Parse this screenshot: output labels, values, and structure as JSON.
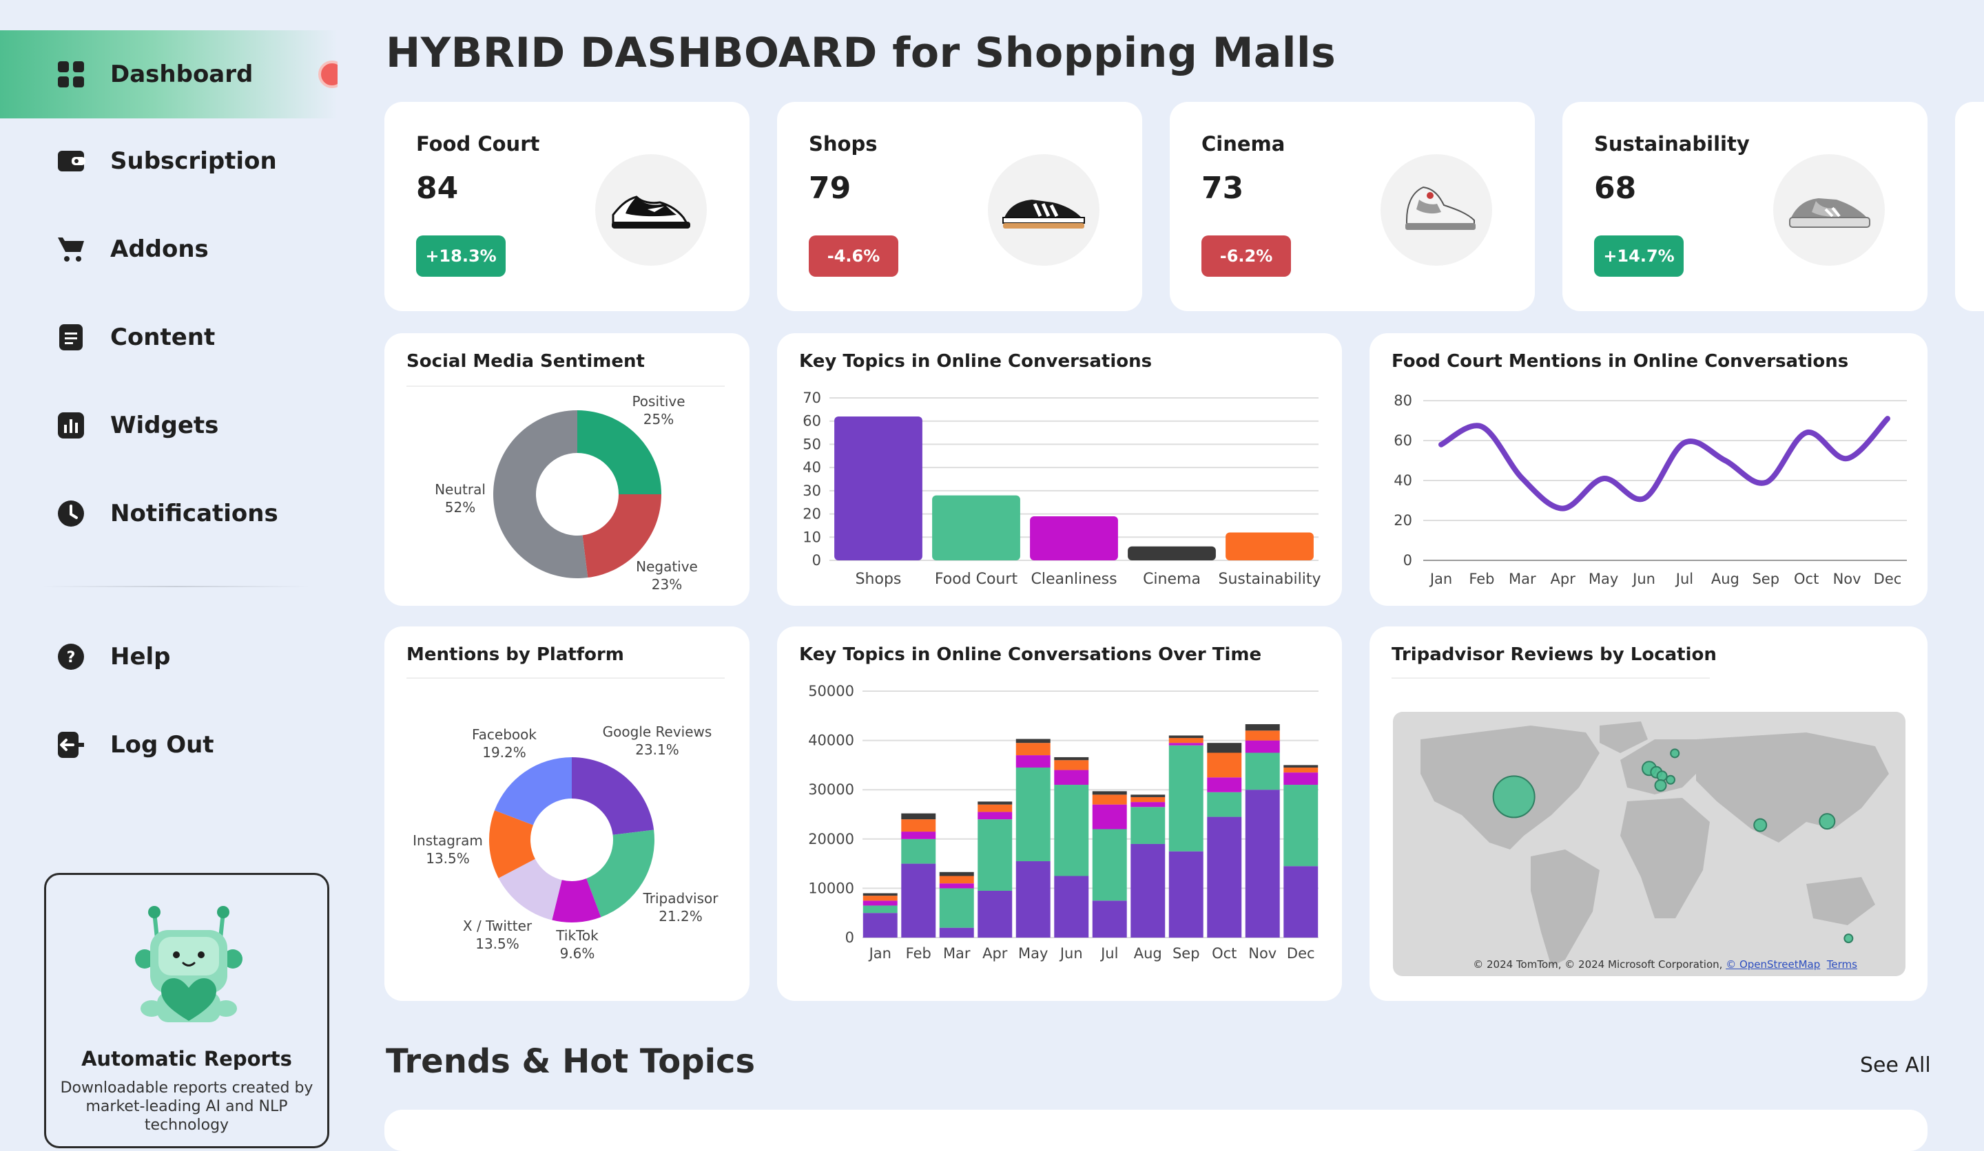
{
  "sidebar": {
    "items": [
      {
        "label": "Dashboard",
        "icon": "grid-icon",
        "active": true
      },
      {
        "label": "Subscription",
        "icon": "wallet-icon"
      },
      {
        "label": "Addons",
        "icon": "cart-icon"
      },
      {
        "label": "Content",
        "icon": "document-icon"
      },
      {
        "label": "Widgets",
        "icon": "bar-chart-icon"
      },
      {
        "label": "Notifications",
        "icon": "clock-icon"
      }
    ],
    "bottom_items": [
      {
        "label": "Help",
        "icon": "help-icon"
      },
      {
        "label": "Log Out",
        "icon": "logout-icon"
      }
    ],
    "promo": {
      "title": "Automatic Reports",
      "text": "Downloadable reports created by market-leading AI and NLP technology"
    }
  },
  "page_title": "HYBRID DASHBOARD for Shopping Malls",
  "kpis": [
    {
      "name": "Food Court",
      "value": "84",
      "change": "+18.3%",
      "trend": "up",
      "image": "sneaker-icon"
    },
    {
      "name": "Shops",
      "value": "79",
      "change": "-4.6%",
      "trend": "down",
      "image": "sneaker-icon"
    },
    {
      "name": "Cinema",
      "value": "73",
      "change": "-6.2%",
      "trend": "down",
      "image": "sneaker-icon"
    },
    {
      "name": "Sustainability",
      "value": "68",
      "change": "+14.7%",
      "trend": "up",
      "image": "sneaker-icon"
    }
  ],
  "colors": {
    "purple": "#7440c4",
    "green": "#4bbf91",
    "magenta": "#c213cc",
    "dark": "#3a3a3a",
    "orange": "#fb6d24",
    "gray": "#858991",
    "red": "#c84a4c",
    "blue": "#6e85fb",
    "lavender": "#d8c9ef",
    "up": "#1fa676",
    "down": "#cc474d"
  },
  "sections": {
    "trends_title": "Trends & Hot Topics",
    "see_all": "See All"
  },
  "map": {
    "title": "Tripadvisor Reviews by Location",
    "credit": "© 2024 TomTom, © 2024 Microsoft Corporation,",
    "credit_link": "© OpenStreetMap",
    "terms": "Terms"
  },
  "chart_data": [
    {
      "type": "pie",
      "title": "Social Media Sentiment",
      "slices": [
        {
          "label": "Positive",
          "value": 25,
          "display": "25%",
          "color": "#1fa676"
        },
        {
          "label": "Negative",
          "value": 23,
          "display": "23%",
          "color": "#c84a4c"
        },
        {
          "label": "Neutral",
          "value": 52,
          "display": "52%",
          "color": "#858991"
        }
      ]
    },
    {
      "type": "bar",
      "title": "Key Topics in Online Conversations",
      "categories": [
        "Shops",
        "Food Court",
        "Cleanliness",
        "Cinema",
        "Sustainability"
      ],
      "values": [
        62,
        28,
        19,
        6,
        12
      ],
      "colors": [
        "#7440c4",
        "#4bbf91",
        "#c213cc",
        "#3a3a3a",
        "#fb6d24"
      ],
      "ylim": [
        0,
        70
      ],
      "yticks": [
        0,
        10,
        20,
        30,
        40,
        50,
        60,
        70
      ],
      "grid": true
    },
    {
      "type": "line",
      "title": "Food Court Mentions in Online Conversations",
      "categories": [
        "Jan",
        "Feb",
        "Mar",
        "Apr",
        "May",
        "Jun",
        "Jul",
        "Aug",
        "Sep",
        "Oct",
        "Nov",
        "Dec"
      ],
      "values": [
        58,
        67,
        41,
        26,
        41,
        31,
        59,
        50,
        39,
        64,
        51,
        71
      ],
      "ylim": [
        0,
        80
      ],
      "yticks": [
        0,
        20,
        40,
        60,
        80
      ],
      "grid": true
    },
    {
      "type": "pie",
      "title": "Mentions by Platform",
      "slices": [
        {
          "label": "Google Reviews",
          "value": 23.1,
          "display": "23.1%",
          "color": "#7440c4"
        },
        {
          "label": "Tripadvisor",
          "value": 21.2,
          "display": "21.2%",
          "color": "#4bbf91"
        },
        {
          "label": "TikTok",
          "value": 9.6,
          "display": "9.6%",
          "color": "#c213cc"
        },
        {
          "label": "X / Twitter",
          "value": 13.5,
          "display": "13.5%",
          "color": "#d8c9ef"
        },
        {
          "label": "Instagram",
          "value": 13.5,
          "display": "13.5%",
          "color": "#fb6d24"
        },
        {
          "label": "Facebook",
          "value": 19.2,
          "display": "19.2%",
          "color": "#6e85fb"
        }
      ]
    },
    {
      "type": "bar",
      "stacked": true,
      "title": "Key Topics in Online Conversations Over Time",
      "categories": [
        "Jan",
        "Feb",
        "Mar",
        "Apr",
        "May",
        "Jun",
        "Jul",
        "Aug",
        "Sep",
        "Oct",
        "Nov",
        "Dec"
      ],
      "ylim": [
        0,
        50000
      ],
      "yticks": [
        0,
        10000,
        20000,
        30000,
        40000,
        50000
      ],
      "grid": true,
      "series": [
        {
          "color": "#7440c4",
          "values": [
            5000,
            15000,
            2000,
            9500,
            15500,
            12500,
            7500,
            19000,
            17500,
            24500,
            30000,
            14500
          ]
        },
        {
          "color": "#4bbf91",
          "values": [
            1500,
            5000,
            8000,
            14500,
            19000,
            18500,
            14500,
            7500,
            21500,
            5000,
            7500,
            16500
          ]
        },
        {
          "color": "#c213cc",
          "values": [
            1000,
            1500,
            1000,
            1500,
            2500,
            3000,
            5000,
            1000,
            500,
            3000,
            2500,
            2500
          ]
        },
        {
          "color": "#fb6d24",
          "values": [
            1000,
            2500,
            1500,
            1500,
            2500,
            2000,
            2000,
            1000,
            1000,
            5000,
            2000,
            1000
          ]
        },
        {
          "color": "#3a3a3a",
          "values": [
            500,
            1200,
            800,
            600,
            800,
            600,
            700,
            500,
            500,
            2000,
            1300,
            500
          ]
        }
      ]
    },
    {
      "type": "scatter",
      "title": "Tripadvisor Reviews by Location",
      "x_unit": "longitude",
      "y_unit": "latitude",
      "points": [
        {
          "lon": -95,
          "lat": 37,
          "size": 30
        },
        {
          "lon": 0,
          "lat": 52,
          "size": 10
        },
        {
          "lon": 5,
          "lat": 50,
          "size": 8
        },
        {
          "lon": 9,
          "lat": 48,
          "size": 7
        },
        {
          "lon": 8,
          "lat": 43,
          "size": 8
        },
        {
          "lon": 15,
          "lat": 46,
          "size": 6
        },
        {
          "lon": 18,
          "lat": 60,
          "size": 6
        },
        {
          "lon": 78,
          "lat": 22,
          "size": 9
        },
        {
          "lon": 125,
          "lat": 24,
          "size": 11
        },
        {
          "lon": 140,
          "lat": -38,
          "size": 6
        }
      ]
    }
  ]
}
